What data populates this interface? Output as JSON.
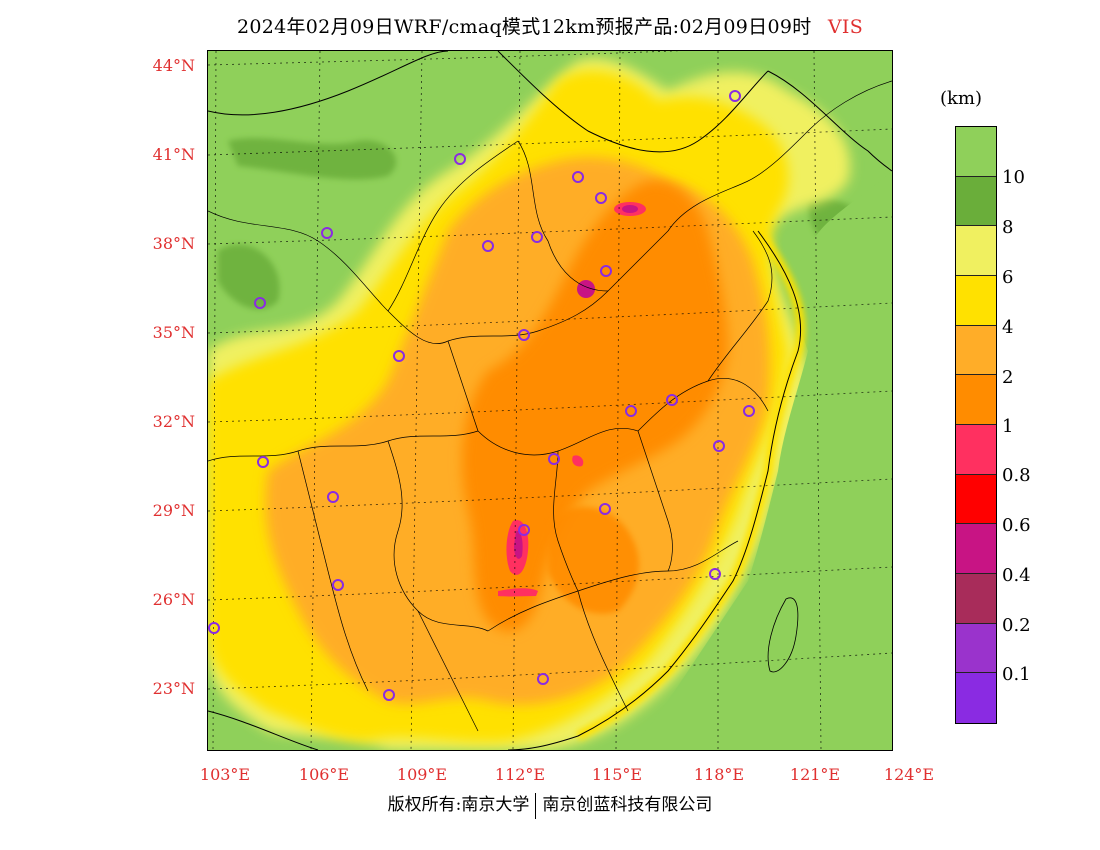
{
  "title": {
    "main": "2024年02月09日WRF/cmaq模式12km预报产品:02月09日09时",
    "variable": "VIS"
  },
  "colors": {
    "background": "#8fd05a",
    "accent_red": "#e03030",
    "marker": "#8a2be2"
  },
  "lat_labels": [
    "44°N",
    "41°N",
    "38°N",
    "35°N",
    "32°N",
    "29°N",
    "26°N",
    "23°N"
  ],
  "lon_labels": [
    "103°E",
    "106°E",
    "109°E",
    "112°E",
    "115°E",
    "118°E",
    "121°E",
    "124°E"
  ],
  "legend": {
    "unit": "(km)",
    "labels": [
      "10",
      "8",
      "6",
      "4",
      "2",
      "1",
      "0.8",
      "0.6",
      "0.4",
      "0.2",
      "0.1"
    ],
    "colors": [
      "#8fd05a",
      "#6aae3a",
      "#f0f060",
      "#ffe100",
      "#ffad28",
      "#ff8c00",
      "#ff3060",
      "#ff0000",
      "#c81484",
      "#a82c5a",
      "#9a33cc",
      "#8a2be2"
    ]
  },
  "footer": {
    "left": "版权所有:南京大学",
    "right": "南京创蓝科技有限公司"
  }
}
